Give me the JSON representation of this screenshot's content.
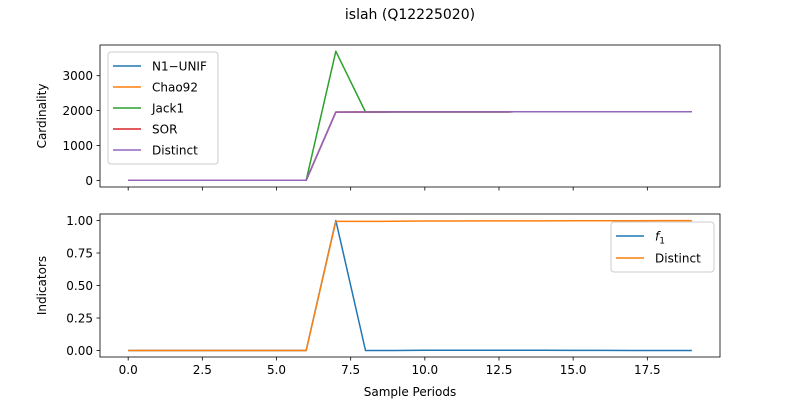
{
  "figure": {
    "title": "islah (Q12225020)"
  },
  "chart_data": [
    {
      "type": "line",
      "ylabel": "Cardinality",
      "xlabel": "",
      "xlim": [
        -0.95,
        19.95
      ],
      "ylim": [
        -190,
        3880
      ],
      "x_ticks": [
        0,
        2.5,
        5,
        7.5,
        10,
        12.5,
        15,
        17.5
      ],
      "show_x_tick_labels": false,
      "y_ticks": [
        0,
        1000,
        2000,
        3000
      ],
      "y_tick_labels": [
        "0",
        "1000",
        "2000",
        "3000"
      ],
      "legend_position": "upper-left",
      "x": [
        0,
        1,
        2,
        3,
        4,
        5,
        6,
        7,
        8,
        9,
        10,
        11,
        12,
        13,
        14,
        15,
        16,
        17,
        18,
        19
      ],
      "series": [
        {
          "name": "N1−UNIF",
          "color": "#1f77b4",
          "values": [
            2,
            2,
            2,
            2,
            2,
            2,
            3,
            1957,
            1960,
            1962,
            1963,
            1964,
            1964,
            1965,
            1966,
            1967,
            1967,
            1968,
            1968,
            1968
          ]
        },
        {
          "name": "Chao92",
          "color": "#ff7f0e",
          "values": [
            2,
            2,
            2,
            2,
            2,
            2,
            3,
            1957,
            1960,
            1962,
            1963,
            1964,
            1964,
            1965,
            1966,
            1967,
            1967,
            1968,
            1968,
            1968
          ]
        },
        {
          "name": "Jack1",
          "color": "#2ca02c",
          "values": [
            2,
            2,
            2,
            2,
            2,
            2,
            3,
            3700,
            1960,
            1962,
            1963,
            1964,
            1964,
            1965,
            1966,
            1967,
            1967,
            1968,
            1968,
            1968
          ]
        },
        {
          "name": "SOR",
          "color": "#d62728",
          "values": [
            2,
            2,
            2,
            2,
            2,
            2,
            3,
            1957,
            1960,
            1962,
            1963,
            1964,
            1964,
            1965,
            1966,
            1967,
            1967,
            1968,
            1968,
            1968
          ]
        },
        {
          "name": "Distinct",
          "color": "#9467bd",
          "values": [
            2,
            2,
            2,
            2,
            2,
            2,
            3,
            1957,
            1960,
            1962,
            1963,
            1964,
            1964,
            1965,
            1966,
            1967,
            1967,
            1968,
            1968,
            1968
          ]
        }
      ]
    },
    {
      "type": "line",
      "ylabel": "Indicators",
      "xlabel": "Sample Periods",
      "xlim": [
        -0.95,
        19.95
      ],
      "ylim": [
        -0.05,
        1.05
      ],
      "x_ticks": [
        0,
        2.5,
        5,
        7.5,
        10,
        12.5,
        15,
        17.5
      ],
      "x_tick_labels": [
        "0.0",
        "2.5",
        "5.0",
        "7.5",
        "10.0",
        "12.5",
        "15.0",
        "17.5"
      ],
      "show_x_tick_labels": true,
      "y_ticks": [
        0,
        0.25,
        0.5,
        0.75,
        1.0
      ],
      "y_tick_labels": [
        "0.00",
        "0.25",
        "0.50",
        "0.75",
        "1.00"
      ],
      "legend_position": "upper-right",
      "x": [
        0,
        1,
        2,
        3,
        4,
        5,
        6,
        7,
        8,
        9,
        10,
        11,
        12,
        13,
        14,
        15,
        16,
        17,
        18,
        19
      ],
      "series": [
        {
          "name": "f1",
          "legend_main": "f",
          "legend_sub": "1",
          "color": "#1f77b4",
          "values": [
            0.0,
            0.0,
            0.0,
            0.0,
            0.0,
            0.0,
            0.0,
            1.0,
            0.0,
            0.0,
            0.002,
            0.002,
            0.002,
            0.002,
            0.002,
            0.001,
            0.001,
            0.0,
            0.0,
            0.0
          ]
        },
        {
          "name": "Distinct",
          "color": "#ff7f0e",
          "values": [
            0.0,
            0.0,
            0.0,
            0.0,
            0.0,
            0.0,
            0.0,
            0.993,
            0.993,
            0.994,
            0.996,
            0.996,
            0.997,
            0.997,
            0.997,
            0.998,
            0.998,
            0.998,
            0.999,
            0.999
          ]
        }
      ]
    }
  ]
}
